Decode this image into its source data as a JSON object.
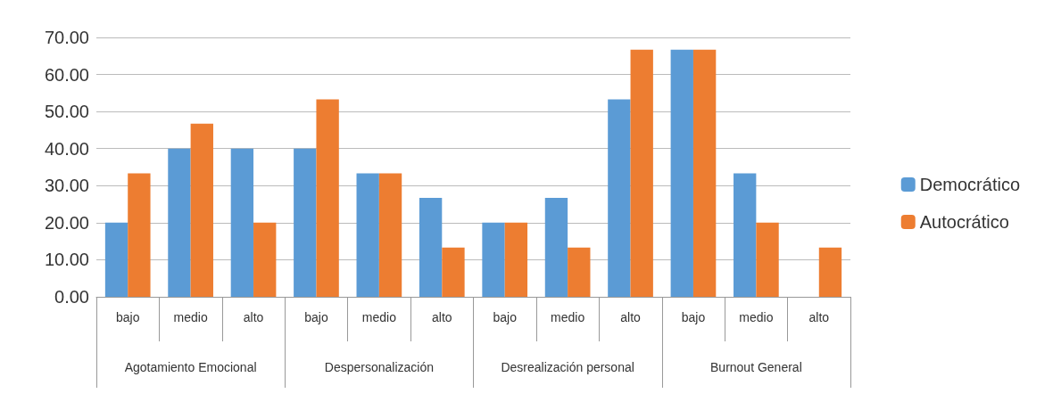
{
  "chart_data": {
    "type": "bar",
    "categories": [
      "bajo",
      "medio",
      "alto",
      "bajo",
      "medio",
      "alto",
      "bajo",
      "medio",
      "alto",
      "bajo",
      "medio",
      "alto"
    ],
    "annotations": [
      "Agotamiento Emocional",
      "Despersonalización",
      "Desrealización personal",
      "Burnout General"
    ],
    "series": [
      {
        "name": "Democrático",
        "color": "#5b9bd5",
        "values": [
          20,
          40,
          40,
          40,
          33.3,
          26.7,
          20,
          26.7,
          53.3,
          66.7,
          33.3,
          0
        ]
      },
      {
        "name": "Autocrático",
        "color": "#ed7d31",
        "values": [
          33.3,
          46.7,
          20,
          53.3,
          33.3,
          13.3,
          20,
          13.3,
          66.7,
          66.7,
          20,
          13.3
        ]
      }
    ],
    "ylim": [
      0,
      70
    ],
    "yticks": [
      {
        "value": 0,
        "label": "0.00"
      },
      {
        "value": 10,
        "label": "10.00"
      },
      {
        "value": 20,
        "label": "20.00"
      },
      {
        "value": 30,
        "label": "30.00"
      },
      {
        "value": 40,
        "label": "40.00"
      },
      {
        "value": 50,
        "label": "50.00"
      },
      {
        "value": 60,
        "label": "60.00"
      },
      {
        "value": 70,
        "label": "70.00"
      }
    ],
    "grid": "y",
    "legend": "right"
  }
}
